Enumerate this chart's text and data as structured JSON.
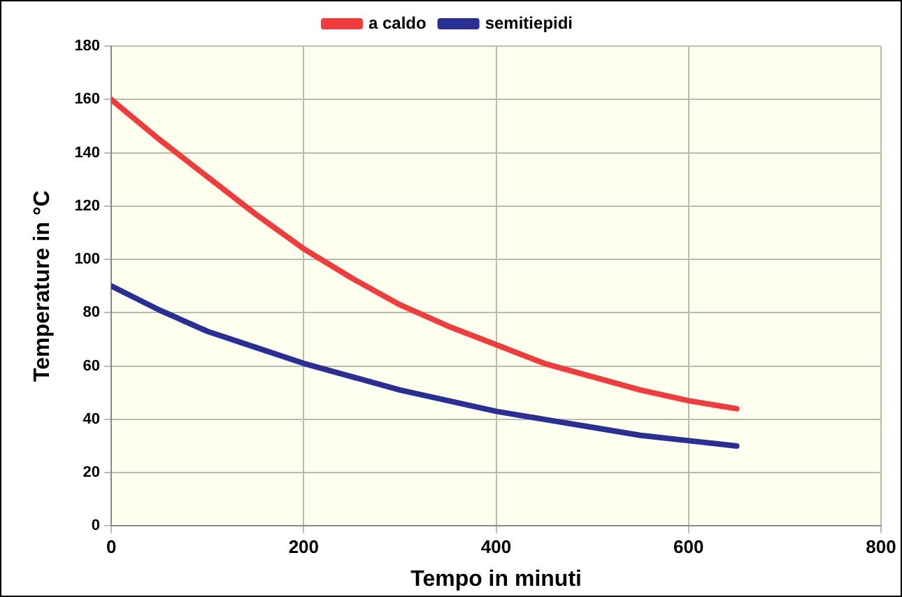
{
  "chart_data": {
    "type": "line",
    "xlabel": "Tempo in minuti",
    "ylabel": "Temperature in °C",
    "x": [
      0,
      50,
      100,
      150,
      200,
      250,
      300,
      350,
      400,
      450,
      500,
      550,
      600,
      650
    ],
    "series": [
      {
        "name": "a caldo",
        "color": "#f03c3c",
        "values": [
          160,
          145,
          131,
          117,
          104,
          93,
          83,
          75,
          68,
          61,
          56,
          51,
          47,
          44
        ]
      },
      {
        "name": "semitiepidi",
        "color": "#2a2f96",
        "values": [
          90,
          81,
          73,
          67,
          61,
          56,
          51,
          47,
          43,
          40,
          37,
          34,
          32,
          30
        ]
      }
    ],
    "xlim": [
      0,
      800
    ],
    "xticks": [
      0,
      200,
      400,
      600,
      800
    ],
    "ylim": [
      0,
      180
    ],
    "yticks": [
      0,
      20,
      40,
      60,
      80,
      100,
      120,
      140,
      160,
      180
    ],
    "grid": true,
    "legend": "top",
    "marker": "none",
    "line_style": "solid"
  }
}
